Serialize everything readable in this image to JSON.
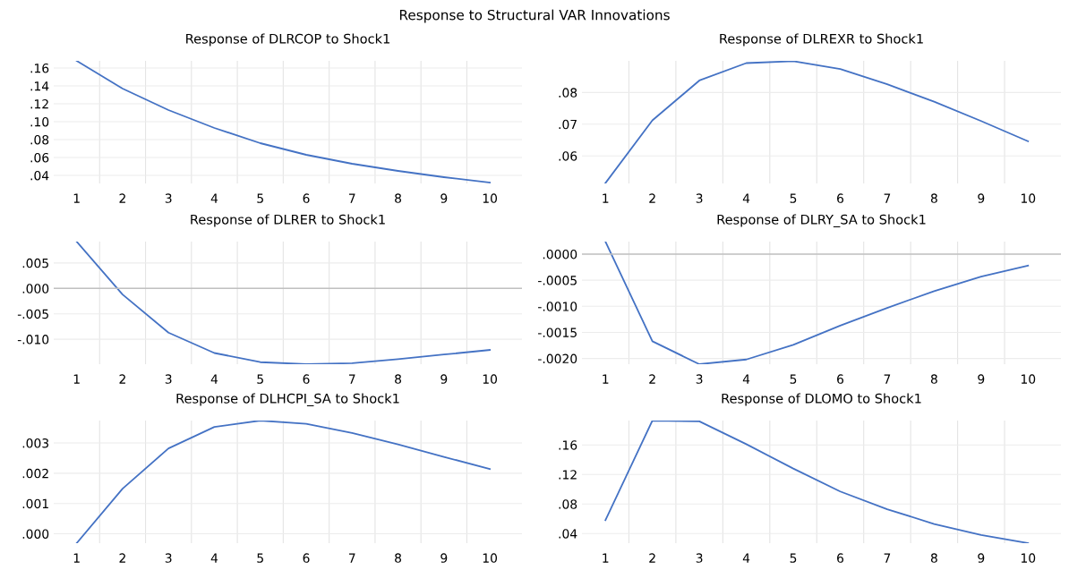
{
  "chart_data": [
    {
      "type": "line",
      "subtitle": "Response to Structural VAR Innovations",
      "title": "Response of DLRCOP to Shock1",
      "categories": [
        "1",
        "2",
        "3",
        "4",
        "5",
        "6",
        "7",
        "8",
        "9",
        "10"
      ],
      "series": [
        {
          "color": "#4472c4",
          "values": [
            0.168,
            0.137,
            0.113,
            0.093,
            0.076,
            0.063,
            0.053,
            0.045,
            0.038,
            0.032
          ]
        }
      ],
      "ylim": [
        0.031,
        0.168
      ],
      "yticks": [
        {
          "value": 0.04,
          "label": ".04"
        },
        {
          "value": 0.06,
          "label": ".06"
        },
        {
          "value": 0.08,
          "label": ".08"
        },
        {
          "value": 0.1,
          "label": ".10"
        },
        {
          "value": 0.12,
          "label": ".12"
        },
        {
          "value": 0.14,
          "label": ".14"
        },
        {
          "value": 0.16,
          "label": ".16"
        }
      ],
      "grid": true
    },
    {
      "type": "line",
      "title": "Response of DLREXR to Shock1",
      "categories": [
        "1",
        "2",
        "3",
        "4",
        "5",
        "6",
        "7",
        "8",
        "9",
        "10"
      ],
      "series": [
        {
          "color": "#4472c4",
          "values": [
            0.0514,
            0.0712,
            0.0838,
            0.0893,
            0.0899,
            0.0874,
            0.0826,
            0.0771,
            0.071,
            0.0646
          ]
        }
      ],
      "ylim": [
        0.0513,
        0.09
      ],
      "yticks": [
        {
          "value": 0.06,
          "label": ".06"
        },
        {
          "value": 0.07,
          "label": ".07"
        },
        {
          "value": 0.08,
          "label": ".08"
        }
      ],
      "grid": true
    },
    {
      "type": "line",
      "title": "Response of DLRER to Shock1",
      "categories": [
        "1",
        "2",
        "3",
        "4",
        "5",
        "6",
        "7",
        "8",
        "9",
        "10"
      ],
      "series": [
        {
          "color": "#4472c4",
          "values": [
            0.0092,
            -0.0012,
            -0.0087,
            -0.0127,
            -0.0145,
            -0.0149,
            -0.0147,
            -0.0139,
            -0.013,
            -0.0121
          ]
        }
      ],
      "ylim": [
        -0.0149,
        0.0092
      ],
      "yticks": [
        {
          "value": -0.01,
          "label": "-.010"
        },
        {
          "value": -0.005,
          "label": "-.005"
        },
        {
          "value": 0,
          "label": ".000"
        },
        {
          "value": 0.005,
          "label": ".005"
        }
      ],
      "grid": true,
      "ref_lines": [
        {
          "axis": "y",
          "value": 0,
          "color": "#c0c0c0"
        }
      ]
    },
    {
      "type": "line",
      "title": "Response of DLRY_SA to Shock1",
      "categories": [
        "1",
        "2",
        "3",
        "4",
        "5",
        "6",
        "7",
        "8",
        "9",
        "10"
      ],
      "series": [
        {
          "color": "#4472c4",
          "values": [
            0.00024,
            -0.00167,
            -0.00211,
            -0.00202,
            -0.00174,
            -0.00137,
            -0.00103,
            -0.00071,
            -0.00043,
            -0.00022
          ]
        }
      ],
      "ylim": [
        -0.00211,
        0.00024
      ],
      "yticks": [
        {
          "value": -0.002,
          "label": "-.0020"
        },
        {
          "value": -0.0015,
          "label": "-.0015"
        },
        {
          "value": -0.001,
          "label": "-.0010"
        },
        {
          "value": -0.0005,
          "label": "-.0005"
        },
        {
          "value": 0,
          "label": ".0000"
        }
      ],
      "grid": true,
      "ref_lines": [
        {
          "axis": "y",
          "value": 0,
          "color": "#c0c0c0"
        }
      ]
    },
    {
      "type": "line",
      "title": "Response of DLHCPI_SA to Shock1",
      "categories": [
        "1",
        "2",
        "3",
        "4",
        "5",
        "6",
        "7",
        "8",
        "9",
        "10"
      ],
      "series": [
        {
          "color": "#4472c4",
          "values": [
            -0.00031,
            0.00149,
            0.00282,
            0.00353,
            0.00374,
            0.00363,
            0.00333,
            0.00295,
            0.00254,
            0.00214
          ]
        }
      ],
      "ylim": [
        -0.00031,
        0.00374
      ],
      "yticks": [
        {
          "value": 0,
          "label": ".000"
        },
        {
          "value": 0.001,
          "label": ".001"
        },
        {
          "value": 0.002,
          "label": ".002"
        },
        {
          "value": 0.003,
          "label": ".003"
        }
      ],
      "grid": true
    },
    {
      "type": "line",
      "title": "Response of DLOMO to Shock1",
      "categories": [
        "1",
        "2",
        "3",
        "4",
        "5",
        "6",
        "7",
        "8",
        "9",
        "10"
      ],
      "series": [
        {
          "color": "#4472c4",
          "values": [
            0.058,
            0.193,
            0.192,
            0.161,
            0.128,
            0.097,
            0.073,
            0.053,
            0.038,
            0.027
          ]
        }
      ],
      "ylim": [
        0.027,
        0.193
      ],
      "yticks": [
        {
          "value": 0.04,
          "label": ".04"
        },
        {
          "value": 0.08,
          "label": ".08"
        },
        {
          "value": 0.12,
          "label": ".12"
        },
        {
          "value": 0.16,
          "label": ".16"
        }
      ],
      "grid": true
    }
  ]
}
